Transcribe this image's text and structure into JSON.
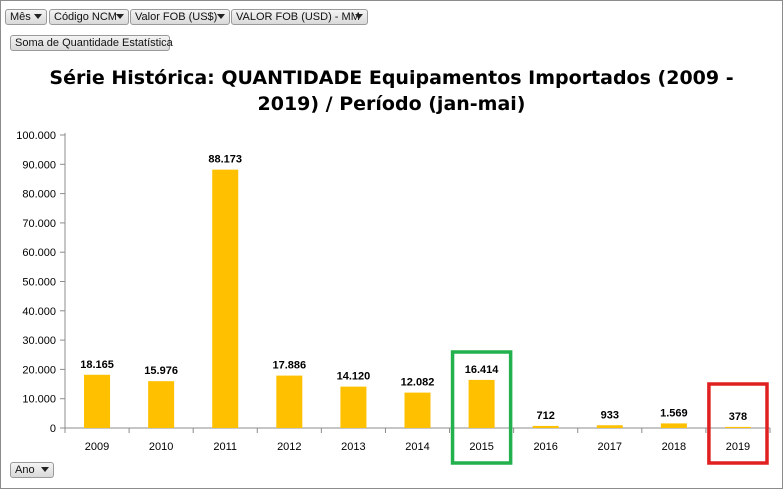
{
  "filters": {
    "top": [
      {
        "label": "Mês"
      },
      {
        "label": "Código NCM"
      },
      {
        "label": "Valor FOB (US$)"
      },
      {
        "label": "VALOR FOB (USD) - MM"
      }
    ],
    "value_field": "Soma de Quantidade Estatística",
    "axis_field": "Ano"
  },
  "colors": {
    "bar": "#FFC000",
    "highlight_green": "#22B14C",
    "highlight_red": "#E02020"
  },
  "highlights": [
    {
      "category": "2015",
      "color": "green"
    },
    {
      "category": "2019",
      "color": "red"
    }
  ],
  "chart_data": {
    "type": "bar",
    "title_line1": "Série Histórica: QUANTIDADE Equipamentos Importados (2009 -",
    "title_line2": "2019) / Período (jan-mai)",
    "categories": [
      "2009",
      "2010",
      "2011",
      "2012",
      "2013",
      "2014",
      "2015",
      "2016",
      "2017",
      "2018",
      "2019"
    ],
    "values": [
      18165,
      15976,
      88173,
      17886,
      14120,
      12082,
      16414,
      712,
      933,
      1569,
      378
    ],
    "data_labels": [
      "18.165",
      "15.976",
      "88.173",
      "17.886",
      "14.120",
      "12.082",
      "16.414",
      "712",
      "933",
      "1.569",
      "378"
    ],
    "y_ticks": [
      "0",
      "10.000",
      "20.000",
      "30.000",
      "40.000",
      "50.000",
      "60.000",
      "70.000",
      "80.000",
      "90.000",
      "100.000"
    ],
    "ylim": [
      0,
      100000
    ],
    "y_tick_step": 10000,
    "grid": false,
    "legend": "none"
  }
}
